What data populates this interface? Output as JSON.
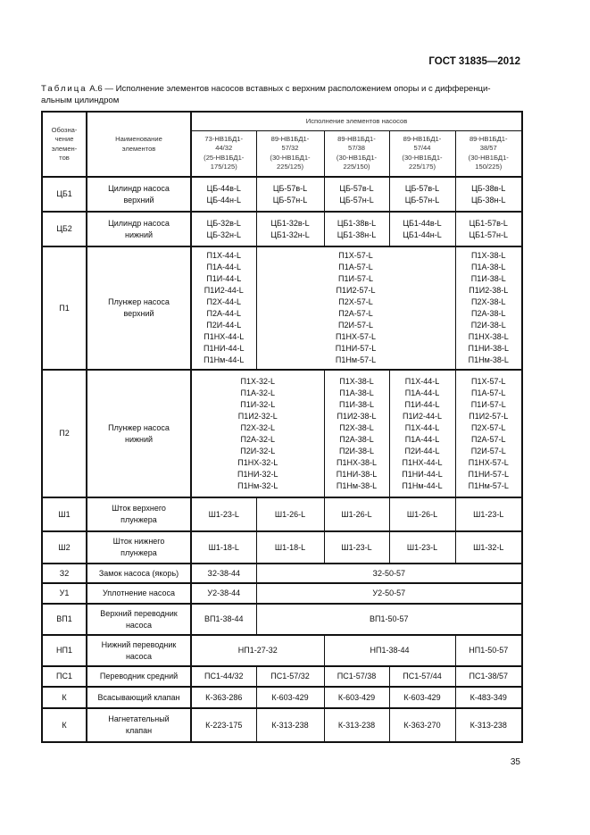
{
  "header": {
    "standard": "ГОСТ 31835—2012"
  },
  "caption": {
    "label": "Таблица",
    "text": " А.6 — Исполнение элементов насосов вставных с верхним расположением опоры и с дифференци-альным цилиндром"
  },
  "table": {
    "head": {
      "designation": "Обозна-\nчение\nэлемен-\nтов",
      "name": "Наименование\nэлементов",
      "group": "Исполнение элементов насосов",
      "variants": [
        "73-НВ1БД1-\n44/32\n(25-НВ1БД1-\n175/125)",
        "89-НВ1БД1-\n57/32\n(30-НВ1БД1-\n225/125)",
        "89-НВ1БД1-\n57/38\n(30-НВ1БД1-\n225/150)",
        "89-НВ1БД1-\n57/44\n(30-НВ1БД1-\n225/175)",
        "89-НВ1БД1-\n38/57\n(30-НВ1БД1-\n150/225)"
      ]
    },
    "rows": [
      {
        "code": "ЦБ1",
        "name": "Цилиндр насоса\nверхний",
        "cells": [
          {
            "t": "ЦБ-44в-L\nЦБ-44н-L",
            "s": 1
          },
          {
            "t": "ЦБ-57в-L\nЦБ-57н-L",
            "s": 1
          },
          {
            "t": "ЦБ-57в-L\nЦБ-57н-L",
            "s": 1
          },
          {
            "t": "ЦБ-57в-L\nЦБ-57н-L",
            "s": 1
          },
          {
            "t": "ЦБ-38в-L\nЦБ-38н-L",
            "s": 1
          }
        ]
      },
      {
        "code": "ЦБ2",
        "name": "Цилиндр насоса\nнижний",
        "cells": [
          {
            "t": "ЦБ-32в-L\nЦБ-32н-L",
            "s": 1
          },
          {
            "t": "ЦБ1-32в-L\nЦБ1-32н-L",
            "s": 1
          },
          {
            "t": "ЦБ1-38в-L\nЦБ1-38н-L",
            "s": 1
          },
          {
            "t": "ЦБ1-44в-L\nЦБ1-44н-L",
            "s": 1
          },
          {
            "t": "ЦБ1-57в-L\nЦБ1-57н-L",
            "s": 1
          }
        ]
      },
      {
        "code": "П1",
        "name": "Плунжер насоса\nверхний",
        "cells": [
          {
            "t": "П1Х-44-L\nП1А-44-L\nП1И-44-L\nП1И2-44-L\nП2Х-44-L\nП2А-44-L\nП2И-44-L\nП1НХ-44-L\nП1НИ-44-L\nП1Нм-44-L",
            "s": 1
          },
          {
            "t": "П1Х-57-L\nП1А-57-L\nП1И-57-L\nП1И2-57-L\nП2Х-57-L\nП2А-57-L\nП2И-57-L\nП1НХ-57-L\nП1НИ-57-L\nП1Нм-57-L",
            "s": 3
          },
          {
            "t": "П1Х-38-L\nП1А-38-L\nП1И-38-L\nП1И2-38-L\nП2Х-38-L\nП2А-38-L\nП2И-38-L\nП1НХ-38-L\nП1НИ-38-L\nП1Нм-38-L",
            "s": 1
          }
        ]
      },
      {
        "code": "П2",
        "name": "Плунжер насоса\nнижний",
        "cells": [
          {
            "t": "П1Х-32-L\nП1А-32-L\nП1И-32-L\nП1И2-32-L\nП2Х-32-L\nП2А-32-L\nП2И-32-L\nП1НХ-32-L\nП1НИ-32-L\nП1Нм-32-L",
            "s": 2
          },
          {
            "t": "П1Х-38-L\nП1А-38-L\nП1И-38-L\nП1И2-38-L\nП2Х-38-L\nП2А-38-L\nП2И-38-L\nП1НХ-38-L\nП1НИ-38-L\nП1Нм-38-L",
            "s": 1
          },
          {
            "t": "П1Х-44-L\nП1А-44-L\nП1И-44-L\nП1И2-44-L\nП1Х-44-L\nП1А-44-L\nП2И-44-L\nП1НХ-44-L\nП1НИ-44-L\nП1Нм-44-L",
            "s": 1
          },
          {
            "t": "П1Х-57-L\nП1А-57-L\nП1И-57-L\nП1И2-57-L\nП2Х-57-L\nП2А-57-L\nП2И-57-L\nП1НХ-57-L\nП1НИ-57-L\nП1Нм-57-L",
            "s": 1
          }
        ]
      },
      {
        "code": "Ш1",
        "name": "Шток верхнего\nплунжера",
        "cells": [
          {
            "t": "Ш1-23-L",
            "s": 1
          },
          {
            "t": "Ш1-26-L",
            "s": 1
          },
          {
            "t": "Ш1-26-L",
            "s": 1
          },
          {
            "t": "Ш1-26-L",
            "s": 1
          },
          {
            "t": "Ш1-23-L",
            "s": 1
          }
        ]
      },
      {
        "code": "Ш2",
        "name": "Шток нижнего\nплунжера",
        "cells": [
          {
            "t": "Ш1-18-L",
            "s": 1
          },
          {
            "t": "Ш1-18-L",
            "s": 1
          },
          {
            "t": "Ш1-23-L",
            "s": 1
          },
          {
            "t": "Ш1-23-L",
            "s": 1
          },
          {
            "t": "Ш1-32-L",
            "s": 1
          }
        ]
      },
      {
        "code": "З2",
        "name": "Замок насоса (якорь)",
        "cells": [
          {
            "t": "З2-38-44",
            "s": 1
          },
          {
            "t": "З2-50-57",
            "s": 4
          }
        ]
      },
      {
        "code": "У1",
        "name": "Уплотнение насоса",
        "cells": [
          {
            "t": "У2-38-44",
            "s": 1
          },
          {
            "t": "У2-50-57",
            "s": 4
          }
        ]
      },
      {
        "code": "ВП1",
        "name": "Верхний переводник\nнасоса",
        "cells": [
          {
            "t": "ВП1-38-44",
            "s": 1
          },
          {
            "t": "ВП1-50-57",
            "s": 4
          }
        ]
      },
      {
        "code": "НП1",
        "name": "Нижний переводник\nнасоса",
        "cells": [
          {
            "t": "НП1-27-32",
            "s": 2
          },
          {
            "t": "НП1-38-44",
            "s": 2
          },
          {
            "t": "НП1-50-57",
            "s": 1
          }
        ]
      },
      {
        "code": "ПС1",
        "name": "Переводник средний",
        "cells": [
          {
            "t": "ПС1-44/32",
            "s": 1
          },
          {
            "t": "ПС1-57/32",
            "s": 1
          },
          {
            "t": "ПС1-57/38",
            "s": 1
          },
          {
            "t": "ПС1-57/44",
            "s": 1
          },
          {
            "t": "ПС1-38/57",
            "s": 1
          }
        ]
      },
      {
        "code": "К",
        "name": "Всасывающий клапан",
        "cells": [
          {
            "t": "К-363-286",
            "s": 1
          },
          {
            "t": "К-603-429",
            "s": 1
          },
          {
            "t": "К-603-429",
            "s": 1
          },
          {
            "t": "К-603-429",
            "s": 1
          },
          {
            "t": "К-483-349",
            "s": 1
          }
        ]
      },
      {
        "code": "К",
        "name": "Нагнетательный\nклапан",
        "cells": [
          {
            "t": "К-223-175",
            "s": 1
          },
          {
            "t": "К-313-238",
            "s": 1
          },
          {
            "t": "К-313-238",
            "s": 1
          },
          {
            "t": "К-363-270",
            "s": 1
          },
          {
            "t": "К-313-238",
            "s": 1
          }
        ]
      }
    ]
  },
  "footer": {
    "page_number": "35"
  }
}
